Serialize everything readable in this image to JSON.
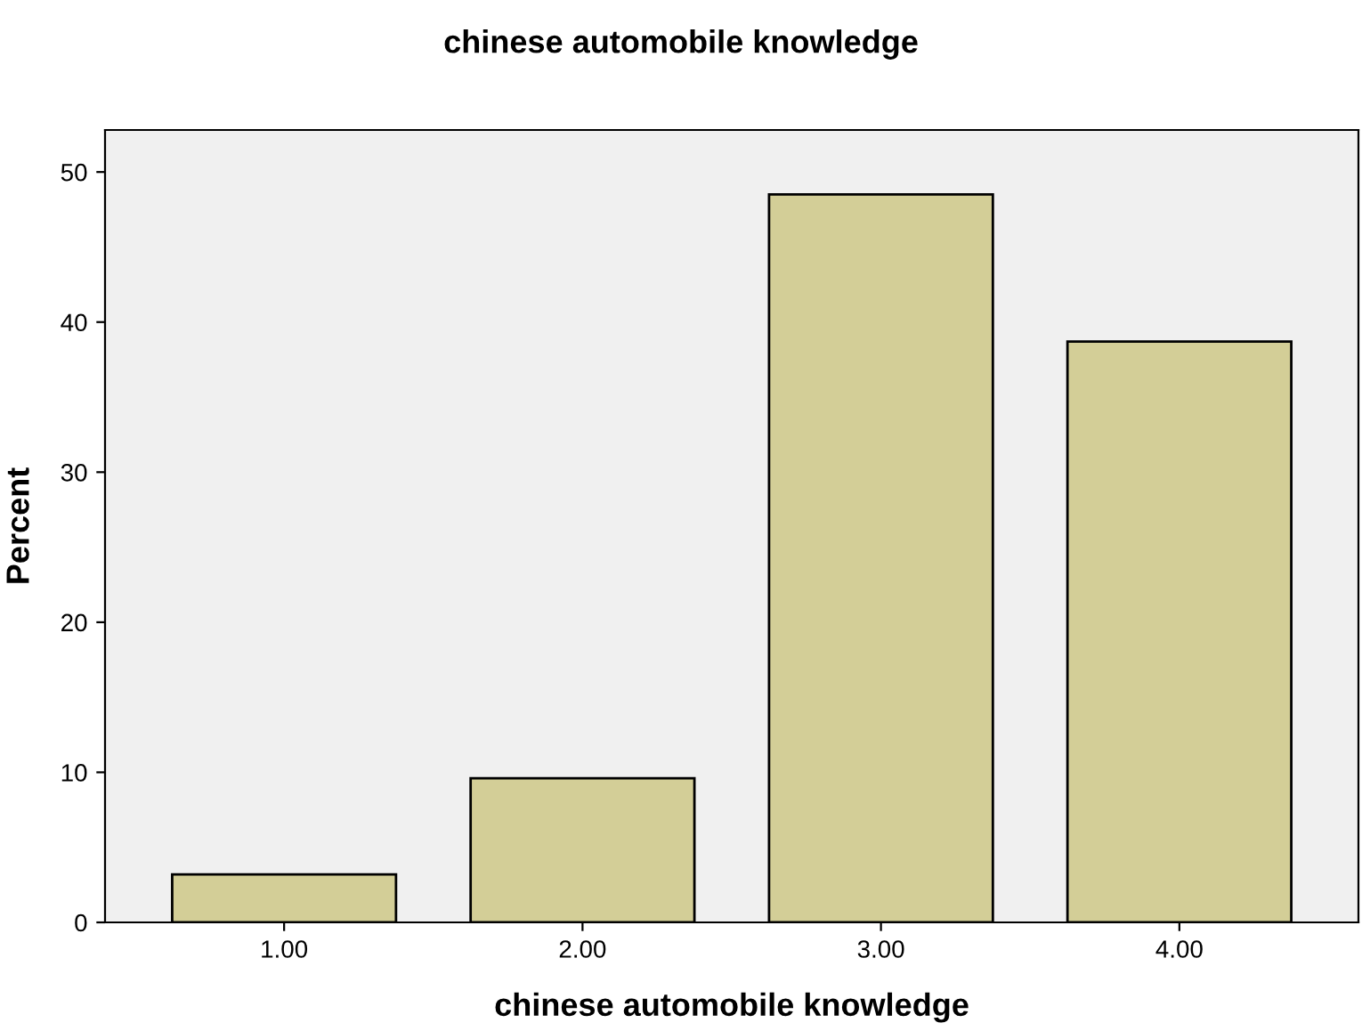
{
  "chart_data": {
    "type": "bar",
    "title": "chinese automobile knowledge",
    "xlabel": "chinese automobile knowledge",
    "ylabel": "Percent",
    "categories": [
      "1.00",
      "2.00",
      "3.00",
      "4.00"
    ],
    "values": [
      3.2,
      9.6,
      48.5,
      38.7
    ],
    "color": "#d3ce97",
    "ylim": [
      0,
      52.8
    ],
    "yticks": [
      0,
      10,
      20,
      30,
      40,
      50
    ],
    "grid": false
  }
}
